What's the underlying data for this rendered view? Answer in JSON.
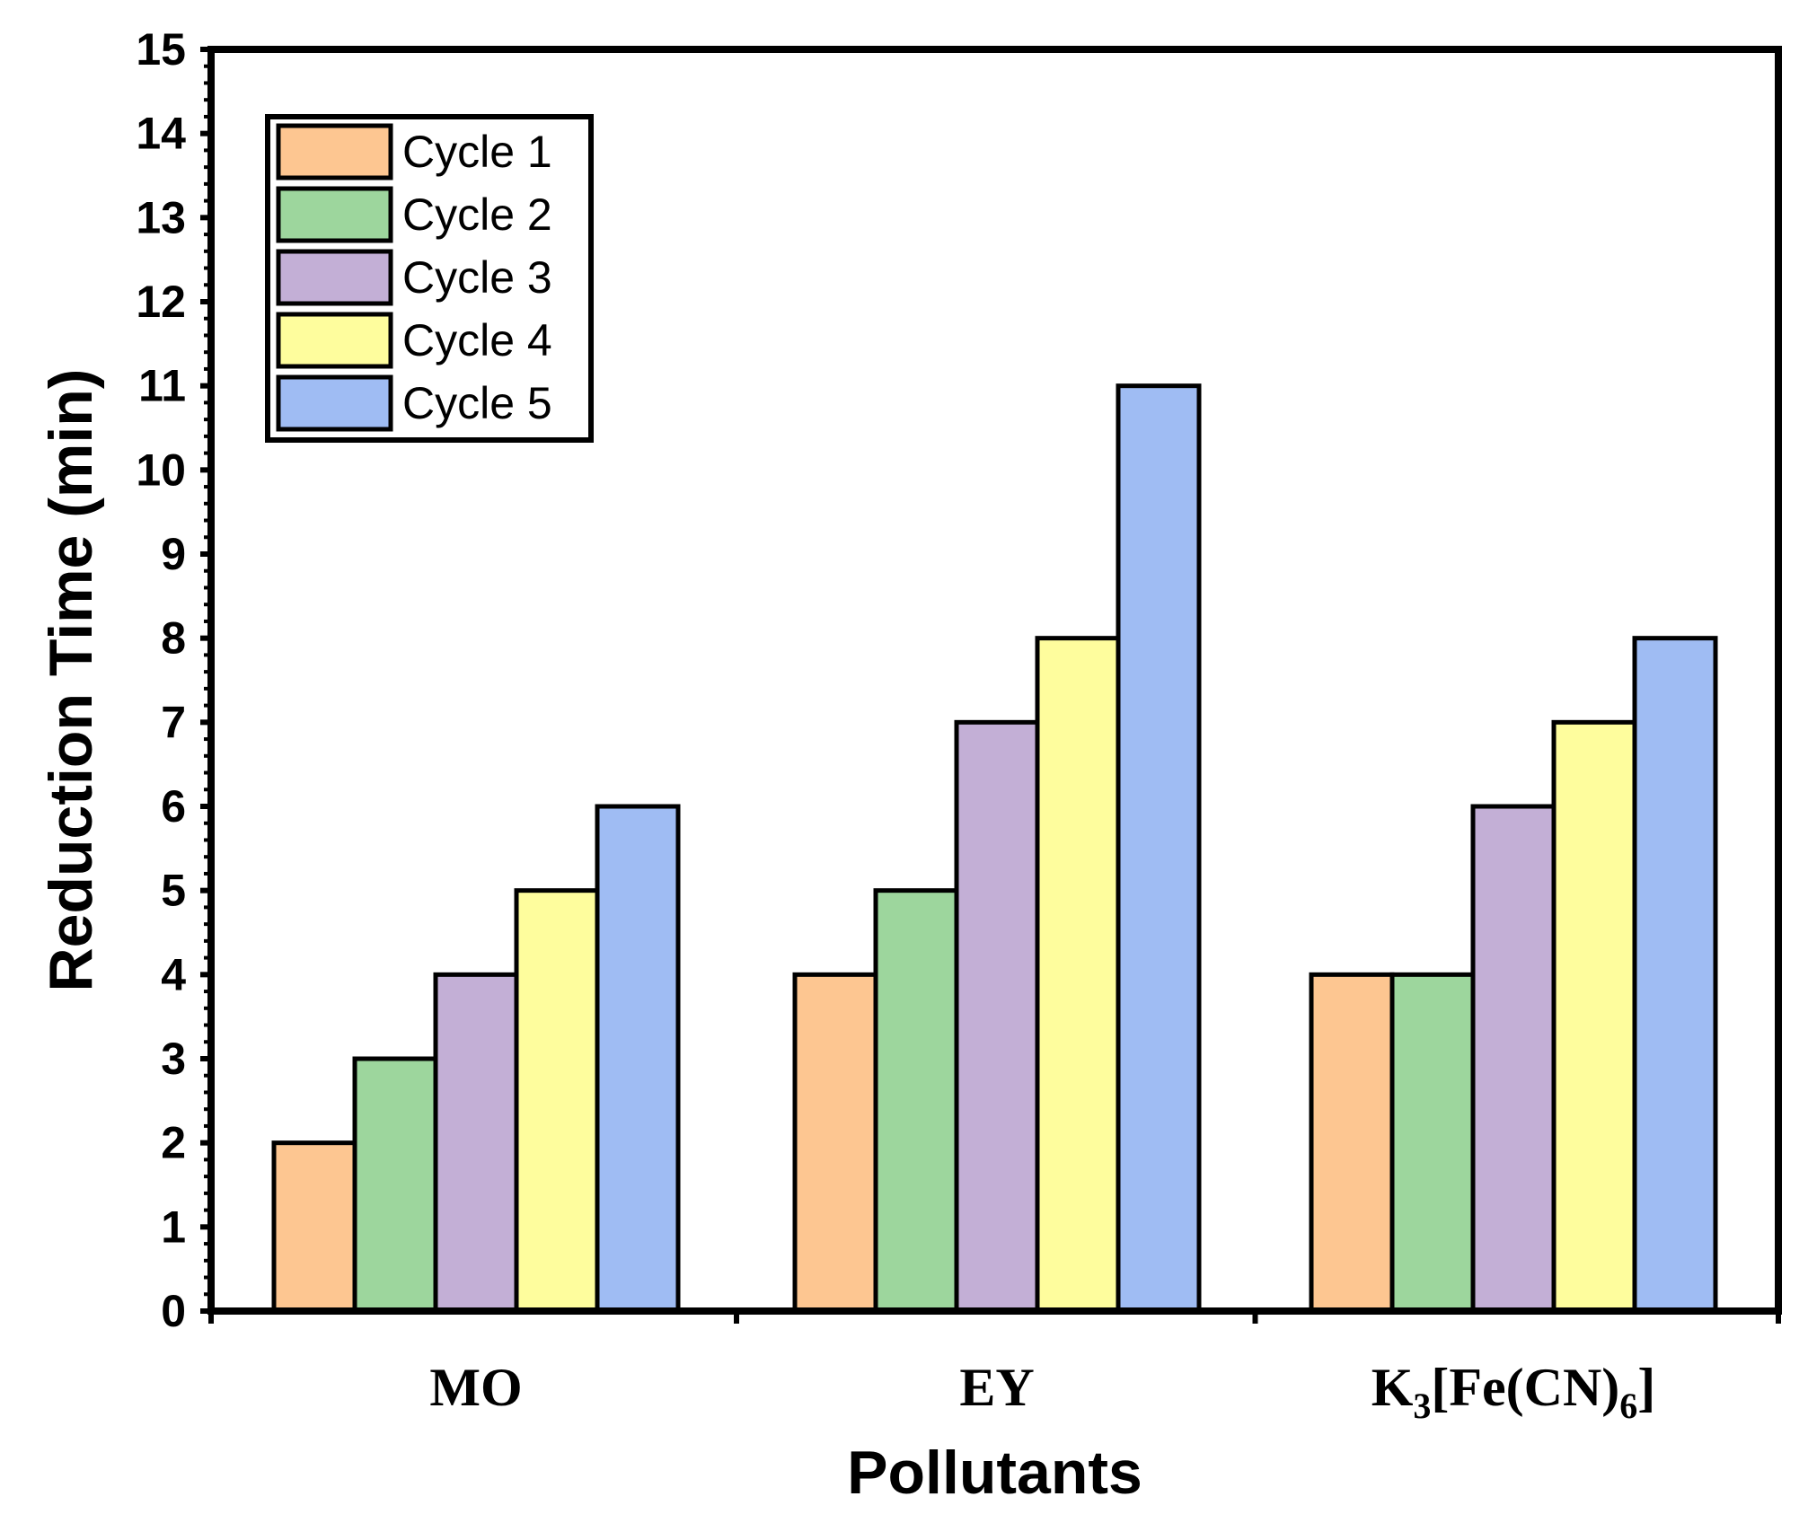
{
  "chart_data": {
    "type": "bar",
    "title": "",
    "xlabel": "Pollutants",
    "ylabel": "Reduction Time (min)",
    "ylim": [
      0,
      15
    ],
    "yticks": [
      "0",
      "1",
      "2",
      "3",
      "4",
      "5",
      "6",
      "7",
      "8",
      "9",
      "10",
      "11",
      "12",
      "13",
      "14",
      "15"
    ],
    "grid": false,
    "legend_position": "top-left",
    "categories": [
      {
        "name": "MO",
        "base": "MO",
        "sub1": "",
        "mid": "",
        "sub2": "",
        "tail": ""
      },
      {
        "name": "EY",
        "base": "EY",
        "sub1": "",
        "mid": "",
        "sub2": "",
        "tail": ""
      },
      {
        "name": "K3[Fe(CN)6]",
        "base": "K",
        "sub1": "3",
        "mid": "[Fe(CN)",
        "sub2": "6",
        "tail": "]"
      }
    ],
    "series": [
      {
        "name": "Cycle 1",
        "color": "#fdc691",
        "values": [
          2,
          4,
          4
        ]
      },
      {
        "name": "Cycle 2",
        "color": "#9dd69d",
        "values": [
          3,
          5,
          4
        ]
      },
      {
        "name": "Cycle 3",
        "color": "#c3afd6",
        "values": [
          4,
          7,
          6
        ]
      },
      {
        "name": "Cycle 4",
        "color": "#fefd9d",
        "values": [
          5,
          8,
          7
        ]
      },
      {
        "name": "Cycle 5",
        "color": "#9fbcf3",
        "values": [
          6,
          11,
          8
        ]
      }
    ]
  }
}
